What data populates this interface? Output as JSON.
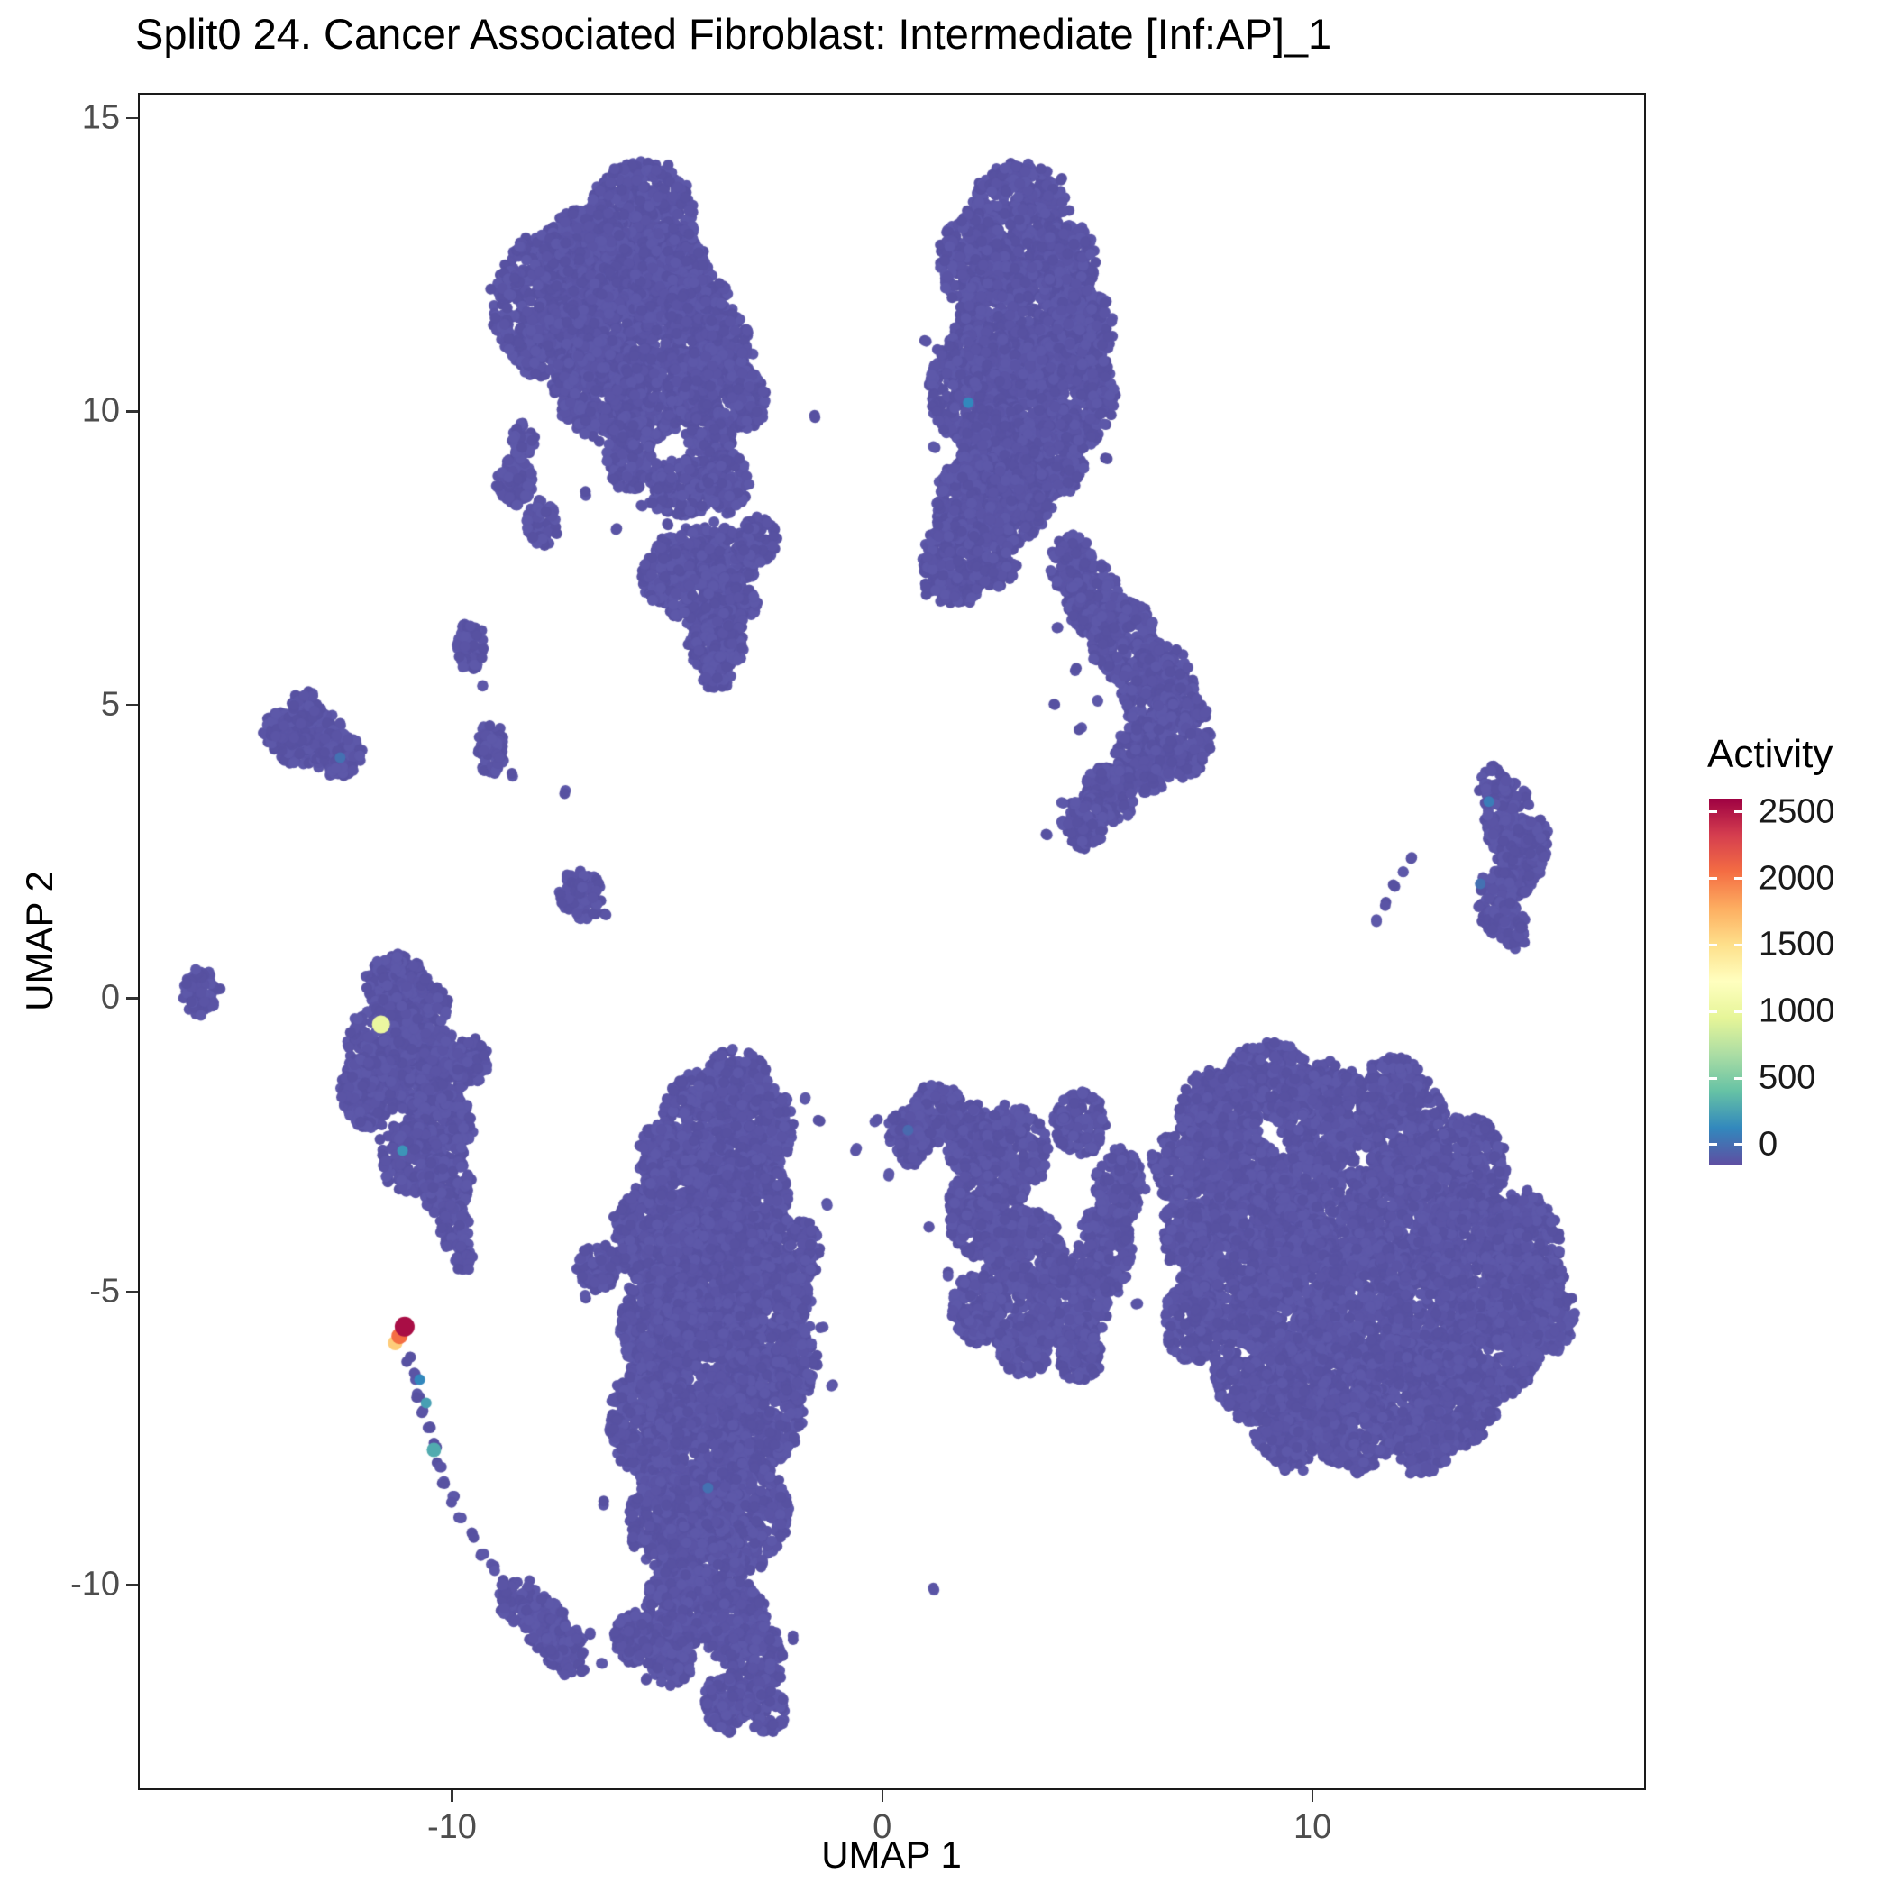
{
  "chart_data": {
    "type": "scatter",
    "title": "Split0 24. Cancer Associated Fibroblast: Intermediate [Inf:AP]_1",
    "xlabel": "UMAP 1",
    "ylabel": "UMAP 2",
    "xlim": [
      -17.3,
      17.75
    ],
    "ylim": [
      -13.5,
      15.43
    ],
    "x_ticks": [
      -10,
      0,
      10
    ],
    "y_ticks": [
      -10,
      -5,
      0,
      5,
      10,
      15
    ],
    "grid": false,
    "background": "#ffffff",
    "point_base_color": "#5a54a5",
    "point_shades": [
      "#5a54a5",
      "#5751a1",
      "#5d58a9"
    ],
    "style": {
      "panel_border_color": "#1a1a1a",
      "axis_tick_color": "#333333",
      "tick_label_color": "#4d4d4d",
      "text_color": "#000000"
    },
    "legend": {
      "title": "Activity",
      "position": "right",
      "ticks": [
        0,
        500,
        1000,
        1500,
        2000,
        2500
      ],
      "range": [
        -150,
        2600
      ],
      "palette_bottom_to_top": [
        "#5E4FA2",
        "#3288BD",
        "#66C2A5",
        "#ABDDA4",
        "#E6F598",
        "#FFFFBF",
        "#FEE08B",
        "#FDAE61",
        "#F46D43",
        "#D53E4F",
        "#9E0142"
      ]
    },
    "clusters": {
      "top_left": [
        [
          -5.6,
          13.2,
          1.25,
          1.05
        ],
        [
          -6.9,
          12.5,
          1.1,
          1.0
        ],
        [
          -7.7,
          11.8,
          1.35,
          1.25
        ],
        [
          -6.3,
          11.5,
          1.1,
          1.0
        ],
        [
          -4.9,
          12.2,
          0.9,
          0.95
        ],
        [
          -4.2,
          11.5,
          0.85,
          0.85
        ],
        [
          -3.6,
          11.0,
          0.6,
          0.7
        ],
        [
          -6.6,
          10.4,
          1.05,
          0.85
        ],
        [
          -5.4,
          10.3,
          0.85,
          0.8
        ],
        [
          -4.4,
          10.4,
          0.6,
          0.6
        ],
        [
          -3.2,
          10.2,
          0.5,
          0.5
        ],
        [
          -5.9,
          9.3,
          0.55,
          0.65
        ],
        [
          -4.0,
          9.6,
          0.55,
          0.55
        ],
        [
          -4.7,
          8.7,
          0.75,
          0.5
        ],
        [
          -3.6,
          8.8,
          0.5,
          0.5
        ],
        [
          -8.55,
          8.8,
          0.42,
          0.42
        ],
        [
          -7.9,
          8.1,
          0.38,
          0.38
        ],
        [
          -8.35,
          9.5,
          0.3,
          0.3
        ],
        [
          -4.1,
          7.5,
          1.3,
          0.55
        ],
        [
          -5.0,
          7.2,
          0.6,
          0.5
        ],
        [
          -3.9,
          6.7,
          1.0,
          0.5
        ],
        [
          -3.85,
          6.0,
          0.65,
          0.42
        ],
        [
          -3.85,
          5.55,
          0.35,
          0.3
        ],
        [
          -2.9,
          7.8,
          0.45,
          0.4
        ]
      ],
      "top_right": [
        [
          3.2,
          13.3,
          1.15,
          0.95
        ],
        [
          2.1,
          12.6,
          0.8,
          0.8
        ],
        [
          4.3,
          12.5,
          0.7,
          0.7
        ],
        [
          3.3,
          11.4,
          1.6,
          1.15
        ],
        [
          2.2,
          10.4,
          1.1,
          1.0
        ],
        [
          4.3,
          10.3,
          1.1,
          1.0
        ],
        [
          4.7,
          11.4,
          0.7,
          0.7
        ],
        [
          2.7,
          9.3,
          1.0,
          0.85
        ],
        [
          3.9,
          9.3,
          0.8,
          0.8
        ],
        [
          2.0,
          8.4,
          0.8,
          0.8
        ],
        [
          3.2,
          8.5,
          0.7,
          0.7
        ],
        [
          1.7,
          7.4,
          0.8,
          0.75
        ],
        [
          2.6,
          7.6,
          0.6,
          0.6
        ],
        [
          4.4,
          7.4,
          0.5,
          0.5
        ],
        [
          4.9,
          6.8,
          0.65,
          0.6
        ],
        [
          5.6,
          6.1,
          0.75,
          0.7
        ],
        [
          6.4,
          5.3,
          0.85,
          0.75
        ],
        [
          6.9,
          4.5,
          0.75,
          0.75
        ],
        [
          6.1,
          4.1,
          0.7,
          0.6
        ],
        [
          5.3,
          3.5,
          0.6,
          0.5
        ],
        [
          4.7,
          3.0,
          0.5,
          0.45
        ]
      ],
      "right_small": [
        [
          14.5,
          3.1,
          0.55,
          0.65
        ],
        [
          14.8,
          2.3,
          0.5,
          0.6
        ],
        [
          14.3,
          1.65,
          0.45,
          0.55
        ],
        [
          14.2,
          3.6,
          0.35,
          0.35
        ],
        [
          14.7,
          1.15,
          0.3,
          0.3
        ],
        [
          15.2,
          2.7,
          0.3,
          0.4
        ]
      ],
      "left_satellites": [
        [
          -13.3,
          4.4,
          0.85,
          0.5
        ],
        [
          -12.6,
          4.15,
          0.5,
          0.4
        ],
        [
          -14.0,
          4.55,
          0.4,
          0.35
        ],
        [
          -13.4,
          4.95,
          0.35,
          0.3
        ],
        [
          -9.6,
          6.0,
          0.33,
          0.4
        ],
        [
          -9.1,
          4.25,
          0.33,
          0.45
        ],
        [
          -7.0,
          1.75,
          0.5,
          0.42
        ],
        [
          -15.85,
          0.1,
          0.42,
          0.38
        ]
      ],
      "mid_left": [
        [
          -11.3,
          0.25,
          0.7,
          0.5
        ],
        [
          -10.7,
          -0.1,
          0.6,
          0.5
        ],
        [
          -11.5,
          -0.8,
          0.95,
          0.8
        ],
        [
          -10.6,
          -1.3,
          0.9,
          0.8
        ],
        [
          -11.95,
          -1.6,
          0.65,
          0.65
        ],
        [
          -10.3,
          -2.2,
          0.75,
          0.75
        ],
        [
          -11.0,
          -2.7,
          0.7,
          0.6
        ],
        [
          -10.15,
          -3.2,
          0.6,
          0.5
        ],
        [
          -9.95,
          -3.9,
          0.33,
          0.4
        ],
        [
          -9.7,
          -4.4,
          0.22,
          0.28
        ],
        [
          -9.55,
          -1.05,
          0.4,
          0.4
        ]
      ],
      "tail_blobs": [
        [
          -8.4,
          -10.3,
          0.5,
          0.4
        ],
        [
          -7.85,
          -10.65,
          0.5,
          0.45
        ],
        [
          -7.4,
          -11.1,
          0.45,
          0.45
        ]
      ],
      "central_bottom": [
        [
          -3.4,
          -1.4,
          0.75,
          0.55
        ],
        [
          -4.2,
          -2.0,
          0.9,
          0.75
        ],
        [
          -2.75,
          -2.2,
          0.7,
          0.7
        ],
        [
          -5.1,
          -2.7,
          0.6,
          0.55
        ],
        [
          -4.3,
          -3.3,
          1.25,
          1.0
        ],
        [
          -3.1,
          -3.6,
          1.0,
          0.9
        ],
        [
          -5.3,
          -4.0,
          0.9,
          0.9
        ],
        [
          -4.0,
          -4.8,
          1.35,
          1.15
        ],
        [
          -2.7,
          -5.2,
          1.0,
          1.0
        ],
        [
          -5.1,
          -5.6,
          1.0,
          1.0
        ],
        [
          -4.2,
          -6.5,
          1.45,
          1.15
        ],
        [
          -2.9,
          -7.0,
          1.05,
          1.0
        ],
        [
          -5.4,
          -7.2,
          0.95,
          0.95
        ],
        [
          -4.3,
          -8.0,
          1.35,
          1.05
        ],
        [
          -3.2,
          -8.8,
          1.05,
          0.9
        ],
        [
          -5.0,
          -8.9,
          0.9,
          0.8
        ],
        [
          -4.2,
          -9.6,
          1.0,
          0.8
        ],
        [
          -6.6,
          -4.6,
          0.5,
          0.4
        ],
        [
          -2.0,
          -6.2,
          0.5,
          0.6
        ],
        [
          -1.85,
          -4.3,
          0.4,
          0.5
        ],
        [
          -4.6,
          -10.3,
          0.9,
          0.7
        ],
        [
          -3.5,
          -10.6,
          0.8,
          0.7
        ],
        [
          -4.9,
          -11.1,
          0.6,
          0.6
        ],
        [
          -3.0,
          -11.3,
          0.7,
          0.65
        ],
        [
          -3.6,
          -12.0,
          0.55,
          0.5
        ],
        [
          -2.7,
          -12.15,
          0.45,
          0.4
        ],
        [
          -5.8,
          -10.9,
          0.45,
          0.45
        ]
      ],
      "center_right": [
        [
          1.3,
          -1.95,
          0.6,
          0.5
        ],
        [
          0.65,
          -2.35,
          0.5,
          0.5
        ],
        [
          2.05,
          -2.4,
          0.6,
          0.6
        ],
        [
          3.0,
          -2.6,
          0.85,
          0.75
        ],
        [
          2.4,
          -3.6,
          0.9,
          0.85
        ],
        [
          3.3,
          -4.5,
          0.95,
          0.9
        ],
        [
          4.4,
          -5.2,
          0.85,
          0.75
        ],
        [
          5.15,
          -4.3,
          0.65,
          0.75
        ],
        [
          5.5,
          -3.2,
          0.55,
          0.65
        ],
        [
          4.6,
          -2.15,
          0.6,
          0.55
        ],
        [
          2.2,
          -5.3,
          0.6,
          0.6
        ],
        [
          3.3,
          -5.9,
          0.65,
          0.5
        ],
        [
          4.6,
          -6.1,
          0.5,
          0.45
        ]
      ],
      "bottom_right": [
        [
          9.0,
          -1.4,
          1.0,
          0.65
        ],
        [
          7.8,
          -2.0,
          0.9,
          0.8
        ],
        [
          10.3,
          -2.0,
          1.1,
          0.9
        ],
        [
          12.2,
          -2.3,
          1.0,
          0.9
        ],
        [
          11.9,
          -1.5,
          0.7,
          0.5
        ],
        [
          13.6,
          -2.9,
          0.9,
          0.9
        ],
        [
          8.3,
          -3.3,
          1.15,
          1.0
        ],
        [
          10.2,
          -3.5,
          1.2,
          1.05
        ],
        [
          12.0,
          -3.8,
          1.1,
          1.05
        ],
        [
          13.8,
          -4.2,
          1.0,
          1.0
        ],
        [
          14.9,
          -4.3,
          0.9,
          0.95
        ],
        [
          15.3,
          -5.3,
          0.8,
          0.85
        ],
        [
          8.0,
          -4.7,
          1.05,
          1.0
        ],
        [
          9.5,
          -5.0,
          1.2,
          1.1
        ],
        [
          11.2,
          -5.2,
          1.15,
          1.05
        ],
        [
          12.9,
          -5.5,
          1.1,
          1.0
        ],
        [
          14.3,
          -5.9,
          0.95,
          0.95
        ],
        [
          8.7,
          -6.3,
          1.0,
          0.95
        ],
        [
          10.3,
          -6.5,
          1.1,
          0.95
        ],
        [
          12.0,
          -6.7,
          1.0,
          0.9
        ],
        [
          13.4,
          -6.8,
          0.9,
          0.85
        ],
        [
          9.5,
          -7.3,
          0.85,
          0.7
        ],
        [
          11.0,
          -7.4,
          0.9,
          0.7
        ],
        [
          12.6,
          -7.5,
          0.7,
          0.6
        ],
        [
          7.2,
          -5.5,
          0.65,
          0.7
        ],
        [
          7.0,
          -4.0,
          0.5,
          0.6
        ],
        [
          6.8,
          -2.9,
          0.5,
          0.55
        ]
      ]
    },
    "sparse_dots": [
      [
        -1.6,
        9.9
      ],
      [
        -6.9,
        8.6
      ],
      [
        -5.6,
        8.4
      ],
      [
        -6.2,
        8.0
      ],
      [
        -5.0,
        8.05
      ],
      [
        -2.7,
        8.1
      ],
      [
        1.2,
        9.4
      ],
      [
        1.0,
        11.2
      ],
      [
        4.5,
        8.9
      ],
      [
        5.2,
        9.2
      ],
      [
        4.1,
        6.3
      ],
      [
        4.5,
        5.6
      ],
      [
        4.0,
        5.0
      ],
      [
        4.6,
        4.6
      ],
      [
        5.0,
        5.1
      ],
      [
        4.2,
        3.3
      ],
      [
        3.8,
        2.8
      ],
      [
        11.5,
        1.3
      ],
      [
        11.7,
        1.6
      ],
      [
        11.9,
        1.9
      ],
      [
        12.1,
        2.15
      ],
      [
        12.3,
        2.4
      ],
      [
        -9.3,
        5.3
      ],
      [
        -7.4,
        3.5
      ],
      [
        -8.6,
        3.8
      ],
      [
        -6.45,
        1.4
      ],
      [
        -6.95,
        -11.45
      ],
      [
        -6.8,
        -10.85
      ],
      [
        -6.5,
        -11.35
      ],
      [
        -6.9,
        -5.1
      ],
      [
        -6.5,
        -8.6
      ],
      [
        -1.4,
        -5.6
      ],
      [
        -1.15,
        -6.6
      ],
      [
        -1.3,
        -3.5
      ],
      [
        -1.8,
        -1.7
      ],
      [
        -1.45,
        -2.1
      ],
      [
        -0.6,
        -2.6
      ],
      [
        -0.15,
        -2.1
      ],
      [
        0.15,
        -3.0
      ],
      [
        -5.5,
        -11.6
      ],
      [
        -2.1,
        -10.9
      ],
      [
        1.5,
        -4.7
      ],
      [
        1.05,
        -3.9
      ],
      [
        5.9,
        -5.2
      ],
      [
        6.3,
        -2.7
      ],
      [
        6.6,
        -4.1
      ],
      [
        1.2,
        -10.05
      ]
    ],
    "tail_chain": [
      [
        -11.0,
        -6.15
      ],
      [
        -10.9,
        -6.45
      ],
      [
        -10.78,
        -6.75
      ],
      [
        -10.65,
        -7.05
      ],
      [
        -10.52,
        -7.35
      ],
      [
        -10.42,
        -7.62
      ],
      [
        -10.3,
        -7.95
      ],
      [
        -10.18,
        -8.25
      ],
      [
        -10.0,
        -8.55
      ],
      [
        -9.8,
        -8.85
      ],
      [
        -9.55,
        -9.15
      ],
      [
        -9.3,
        -9.45
      ],
      [
        -9.05,
        -9.7
      ],
      [
        -8.8,
        -9.95
      ]
    ],
    "accent_points": [
      {
        "x": 2.0,
        "y": 10.15,
        "activity": 250
      },
      {
        "x": 14.1,
        "y": 3.35,
        "activity": 200
      },
      {
        "x": 13.9,
        "y": 1.95,
        "activity": 150
      },
      {
        "x": -11.15,
        "y": -2.6,
        "activity": 300
      },
      {
        "x": -4.05,
        "y": -8.35,
        "activity": 150
      },
      {
        "x": 0.6,
        "y": -2.25,
        "activity": 120
      },
      {
        "x": -12.6,
        "y": 4.1,
        "activity": 150
      },
      {
        "x": -10.6,
        "y": -6.9,
        "activity": 350
      },
      {
        "x": -10.75,
        "y": -6.5,
        "activity": 250
      }
    ],
    "highlight_points": [
      {
        "x": -11.65,
        "y": -0.45,
        "activity": 1050,
        "size": 10
      },
      {
        "x": -11.32,
        "y": -5.88,
        "activity": 1600,
        "size": 8
      },
      {
        "x": -11.22,
        "y": -5.76,
        "activity": 2000,
        "size": 9
      },
      {
        "x": -11.1,
        "y": -5.6,
        "activity": 2450,
        "size": 11
      },
      {
        "x": -10.42,
        "y": -7.7,
        "activity": 400,
        "size": 8
      }
    ]
  }
}
